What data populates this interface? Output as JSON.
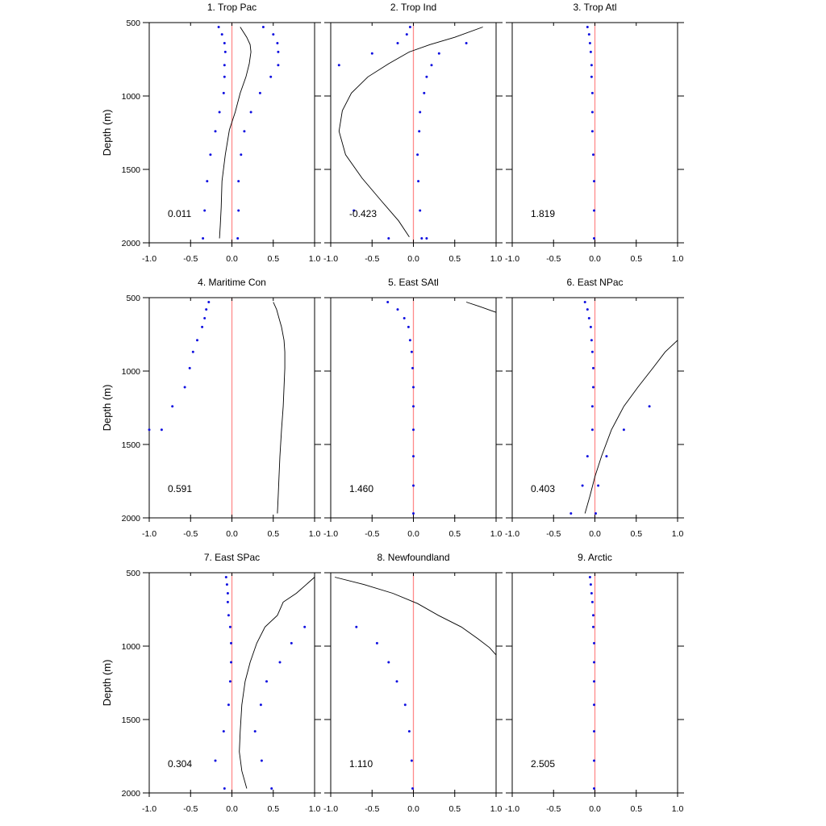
{
  "chart_data": [
    {
      "type": "line",
      "title": "1. Trop Pac",
      "ylabel": "Depth (m)",
      "annotation": "0.011",
      "xlim": [
        -1.0,
        1.0
      ],
      "ylim": [
        500,
        2000
      ],
      "y_inverted": true,
      "xticks": [
        "-1.0",
        "-0.5",
        "0.0",
        "0.5",
        "1.0"
      ],
      "yticks": [
        "500",
        "1000",
        "1500",
        "2000"
      ],
      "reference_line_x": 0.0,
      "curve": {
        "x": [
          0.1,
          0.18,
          0.22,
          0.23,
          0.21,
          0.17,
          0.1,
          0.04,
          -0.03,
          -0.08,
          -0.12,
          -0.13,
          -0.14,
          -0.15
        ],
        "y": [
          530,
          600,
          650,
          700,
          780,
          870,
          980,
          1110,
          1230,
          1400,
          1580,
          1760,
          1880,
          1970
        ]
      },
      "points": [
        {
          "x": [
            -0.16,
            -0.12,
            -0.09,
            -0.08,
            -0.09,
            -0.09,
            -0.1,
            -0.15,
            -0.2,
            -0.26,
            -0.3,
            -0.33,
            -0.35
          ],
          "y": [
            530,
            580,
            640,
            700,
            790,
            870,
            980,
            1110,
            1240,
            1400,
            1580,
            1780,
            1970
          ]
        },
        {
          "x": [
            0.38,
            0.5,
            0.55,
            0.56,
            0.56,
            0.47,
            0.34,
            0.23,
            0.15,
            0.11,
            0.08,
            0.08,
            0.07
          ],
          "y": [
            530,
            580,
            640,
            700,
            790,
            870,
            980,
            1110,
            1240,
            1400,
            1580,
            1780,
            1970
          ]
        }
      ]
    },
    {
      "type": "line",
      "title": "2. Trop Ind",
      "ylabel": "",
      "annotation": "-0.423",
      "xlim": [
        -1.0,
        1.0
      ],
      "ylim": [
        500,
        2000
      ],
      "y_inverted": true,
      "xticks": [
        "-1.0",
        "-0.5",
        "0.0",
        "0.5",
        "1.0"
      ],
      "yticks": [],
      "reference_line_x": 0.0,
      "curve": {
        "x": [
          0.84,
          0.5,
          0.2,
          -0.05,
          -0.3,
          -0.55,
          -0.75,
          -0.86,
          -0.9,
          -0.82,
          -0.62,
          -0.38,
          -0.18,
          -0.05
        ],
        "y": [
          530,
          600,
          650,
          700,
          780,
          870,
          980,
          1100,
          1240,
          1400,
          1560,
          1720,
          1850,
          1960
        ]
      },
      "points": [
        {
          "x": [
            -0.04,
            -0.08,
            -0.19,
            -0.5,
            -0.9
          ],
          "y": [
            530,
            580,
            640,
            710,
            790
          ]
        },
        {
          "x": [
            0.64,
            0.31,
            0.22,
            0.16,
            0.13,
            0.08,
            0.07,
            0.05,
            0.06,
            0.08,
            0.1,
            0.16
          ],
          "y": [
            640,
            710,
            790,
            870,
            980,
            1110,
            1240,
            1400,
            1580,
            1780,
            1970,
            1970
          ]
        },
        {
          "x": [
            -0.72,
            -0.3
          ],
          "y": [
            1780,
            1970
          ]
        }
      ]
    },
    {
      "type": "line",
      "title": "3. Trop Atl",
      "ylabel": "",
      "annotation": "1.819",
      "xlim": [
        -1.0,
        1.0
      ],
      "ylim": [
        500,
        2000
      ],
      "y_inverted": true,
      "xticks": [
        "-1.0",
        "-0.5",
        "0.0",
        "0.5",
        "1.0"
      ],
      "yticks": [],
      "reference_line_x": 0.0,
      "curve": {
        "x": [],
        "y": []
      },
      "points": [
        {
          "x": [
            -0.09,
            -0.07,
            -0.06,
            -0.05,
            -0.04,
            -0.04,
            -0.03,
            -0.03,
            -0.03,
            -0.02,
            -0.01,
            -0.01,
            -0.01
          ],
          "y": [
            530,
            580,
            640,
            700,
            790,
            870,
            980,
            1110,
            1240,
            1400,
            1580,
            1780,
            1970
          ]
        }
      ]
    },
    {
      "type": "line",
      "title": "4. Maritime Con",
      "ylabel": "Depth (m)",
      "annotation": "0.591",
      "xlim": [
        -1.0,
        1.0
      ],
      "ylim": [
        500,
        2000
      ],
      "y_inverted": true,
      "xticks": [
        "-1.0",
        "-0.5",
        "0.0",
        "0.5",
        "1.0"
      ],
      "yticks": [
        "500",
        "1000",
        "1500",
        "2000"
      ],
      "reference_line_x": 0.0,
      "curve": {
        "x": [
          0.5,
          0.54,
          0.57,
          0.6,
          0.63,
          0.64,
          0.64,
          0.63,
          0.62,
          0.6,
          0.58,
          0.57,
          0.56,
          0.55
        ],
        "y": [
          530,
          580,
          640,
          700,
          790,
          870,
          980,
          1110,
          1240,
          1400,
          1580,
          1720,
          1850,
          1970
        ]
      },
      "points": [
        {
          "x": [
            -0.28,
            -0.31,
            -0.33,
            -0.36,
            -0.42,
            -0.47,
            -0.51,
            -0.57,
            -0.72,
            -0.85,
            -1.0
          ],
          "y": [
            530,
            580,
            640,
            700,
            790,
            870,
            980,
            1110,
            1240,
            1400,
            1400
          ]
        }
      ]
    },
    {
      "type": "line",
      "title": "5. East SAtl",
      "ylabel": "",
      "annotation": "1.460",
      "xlim": [
        -1.0,
        1.0
      ],
      "ylim": [
        500,
        2000
      ],
      "y_inverted": true,
      "xticks": [
        "-1.0",
        "-0.5",
        "0.0",
        "0.5",
        "1.0"
      ],
      "yticks": [],
      "reference_line_x": 0.0,
      "curve": {
        "x": [
          0.64,
          0.8,
          0.95,
          1.0
        ],
        "y": [
          530,
          560,
          590,
          600
        ]
      },
      "points": [
        {
          "x": [
            -0.31,
            -0.19,
            -0.11,
            -0.06,
            -0.04,
            -0.02,
            -0.01,
            0.0,
            0.0,
            0.0,
            0.0,
            0.0,
            0.0
          ],
          "y": [
            530,
            580,
            640,
            700,
            790,
            870,
            980,
            1110,
            1240,
            1400,
            1580,
            1780,
            1970
          ]
        }
      ]
    },
    {
      "type": "line",
      "title": "6. East NPac",
      "ylabel": "",
      "annotation": "0.403",
      "xlim": [
        -1.0,
        1.0
      ],
      "ylim": [
        500,
        2000
      ],
      "y_inverted": true,
      "xticks": [
        "-1.0",
        "-0.5",
        "0.0",
        "0.5",
        "1.0"
      ],
      "yticks": [],
      "reference_line_x": 0.0,
      "curve": {
        "x": [
          1.0,
          0.85,
          0.7,
          0.52,
          0.35,
          0.2,
          0.08,
          0.0,
          -0.06,
          -0.12
        ],
        "y": [
          790,
          870,
          980,
          1110,
          1240,
          1400,
          1580,
          1720,
          1850,
          1970
        ]
      },
      "points": [
        {
          "x": [
            -0.12,
            -0.09,
            -0.07,
            -0.05,
            -0.04,
            -0.03,
            -0.02,
            -0.02,
            -0.03,
            -0.03,
            -0.09,
            -0.15,
            -0.29
          ],
          "y": [
            530,
            580,
            640,
            700,
            790,
            870,
            980,
            1110,
            1240,
            1400,
            1580,
            1780,
            1970
          ]
        },
        {
          "x": [
            0.66,
            0.35,
            0.14,
            0.04,
            0.01
          ],
          "y": [
            1240,
            1400,
            1580,
            1780,
            1970
          ]
        }
      ]
    },
    {
      "type": "line",
      "title": "7. East SPac",
      "ylabel": "Depth (m)",
      "annotation": "0.304",
      "xlim": [
        -1.0,
        1.0
      ],
      "ylim": [
        500,
        2000
      ],
      "y_inverted": true,
      "xticks": [
        "-1.0",
        "-0.5",
        "0.0",
        "0.5",
        "1.0"
      ],
      "yticks": [
        "500",
        "1000",
        "1500",
        "2000"
      ],
      "reference_line_x": 0.0,
      "curve": {
        "x": [
          1.0,
          0.9,
          0.78,
          0.62,
          0.55,
          0.4,
          0.3,
          0.22,
          0.16,
          0.12,
          0.1,
          0.09,
          0.12,
          0.18
        ],
        "y": [
          530,
          580,
          640,
          700,
          790,
          870,
          980,
          1110,
          1240,
          1400,
          1580,
          1720,
          1850,
          1970
        ]
      },
      "points": [
        {
          "x": [
            -0.07,
            -0.06,
            -0.05,
            -0.05,
            -0.04,
            -0.02,
            -0.01,
            -0.01,
            -0.02,
            -0.04,
            -0.1,
            -0.2,
            -0.09
          ],
          "y": [
            530,
            580,
            640,
            700,
            790,
            870,
            980,
            1110,
            1240,
            1400,
            1580,
            1780,
            1970
          ]
        },
        {
          "x": [
            0.88,
            0.72,
            0.58,
            0.42,
            0.35,
            0.28,
            0.36,
            0.48
          ],
          "y": [
            870,
            980,
            1110,
            1240,
            1400,
            1580,
            1780,
            1970
          ]
        }
      ]
    },
    {
      "type": "line",
      "title": "8. Newfoundland",
      "ylabel": "",
      "annotation": "1.110",
      "xlim": [
        -1.0,
        1.0
      ],
      "ylim": [
        500,
        2000
      ],
      "y_inverted": true,
      "xticks": [
        "-1.0",
        "-0.5",
        "0.0",
        "0.5",
        "1.0"
      ],
      "yticks": [],
      "reference_line_x": 0.0,
      "curve": {
        "x": [
          -0.95,
          -0.6,
          -0.25,
          0.05,
          0.3,
          0.58,
          0.78,
          0.92,
          1.0
        ],
        "y": [
          530,
          580,
          640,
          710,
          790,
          870,
          950,
          1010,
          1060
        ]
      },
      "points": [
        {
          "x": [
            -0.69,
            -0.44,
            -0.3,
            -0.2,
            -0.1,
            -0.05,
            -0.02,
            -0.01
          ],
          "y": [
            870,
            980,
            1110,
            1240,
            1400,
            1580,
            1780,
            1970
          ]
        }
      ]
    },
    {
      "type": "line",
      "title": "9. Arctic",
      "ylabel": "",
      "annotation": "2.505",
      "xlim": [
        -1.0,
        1.0
      ],
      "ylim": [
        500,
        2000
      ],
      "y_inverted": true,
      "xticks": [
        "-1.0",
        "-0.5",
        "0.0",
        "0.5",
        "1.0"
      ],
      "yticks": [],
      "reference_line_x": 0.0,
      "curve": {
        "x": [],
        "y": []
      },
      "points": [
        {
          "x": [
            -0.06,
            -0.05,
            -0.04,
            -0.03,
            -0.02,
            -0.02,
            -0.01,
            -0.01,
            -0.01,
            -0.01,
            -0.01,
            -0.01,
            -0.01
          ],
          "y": [
            530,
            580,
            640,
            700,
            790,
            870,
            980,
            1110,
            1240,
            1400,
            1580,
            1780,
            1970
          ]
        }
      ]
    }
  ],
  "colors": {
    "reference_line": "#ff8a8a",
    "points": "#1010e0",
    "curve": "#000000",
    "axis": "#000000"
  }
}
